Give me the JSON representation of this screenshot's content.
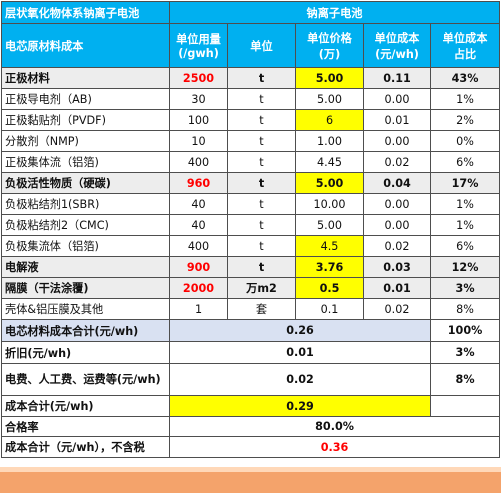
{
  "header": {
    "title_line1": "层状氧化物体系钠离子电池",
    "title_line2": "电芯原材料成本",
    "group_title": "钠离子电池",
    "col_usage_line1": "单位用量",
    "col_usage_line2": "(/gwh)",
    "col_unit": "单位",
    "col_price_line1": "单位价格",
    "col_price_line2": "(万)",
    "col_cost_line1": "单位成本",
    "col_cost_line2": "(元/wh)",
    "col_share_line1": "单位成本",
    "col_share_line2": "占比"
  },
  "rows": [
    {
      "name": "正极材料",
      "usage": "2500",
      "unit": "t",
      "price": "5.00",
      "cost": "0.11",
      "share": "43%",
      "category": true
    },
    {
      "name": "正极导电剂（AB)",
      "usage": "30",
      "unit": "t",
      "price": "5.00",
      "cost": "0.00",
      "share": "1%",
      "category": false
    },
    {
      "name": "正极黏贴剂（PVDF)",
      "usage": "100",
      "unit": "t",
      "price": "6",
      "cost": "0.01",
      "share": "2%",
      "category": false,
      "highlight": true
    },
    {
      "name": "分散剂（NMP)",
      "usage": "10",
      "unit": "t",
      "price": "1.00",
      "cost": "0.00",
      "share": "0%",
      "category": false
    },
    {
      "name": "正极集体流（铝箔)",
      "usage": "400",
      "unit": "t",
      "price": "4.45",
      "cost": "0.02",
      "share": "6%",
      "category": false
    },
    {
      "name": "负极活性物质（硬碳)",
      "usage": "960",
      "unit": "t",
      "price": "5.00",
      "cost": "0.04",
      "share": "17%",
      "category": true
    },
    {
      "name": "负极粘结剂1(SBR)",
      "usage": "40",
      "unit": "t",
      "price": "10.00",
      "cost": "0.00",
      "share": "1%",
      "category": false
    },
    {
      "name": "负极粘结剂2（CMC)",
      "usage": "40",
      "unit": "t",
      "price": "5.00",
      "cost": "0.00",
      "share": "1%",
      "category": false
    },
    {
      "name": "负极集流体（铝箔)",
      "usage": "400",
      "unit": "t",
      "price": "4.5",
      "cost": "0.02",
      "share": "6%",
      "category": false,
      "highlight": true
    },
    {
      "name": "电解液",
      "usage": "900",
      "unit": "t",
      "price": "3.76",
      "cost": "0.03",
      "share": "12%",
      "category": true
    },
    {
      "name": "隔膜（干法涂覆)",
      "usage": "2000",
      "unit": "万m2",
      "price": "0.5",
      "cost": "0.01",
      "share": "3%",
      "category": true
    },
    {
      "name": "壳体&铝压膜及其他",
      "usage": "1",
      "unit": "套",
      "price": "0.1",
      "cost": "0.02",
      "share": "8%",
      "category": false
    }
  ],
  "summary": {
    "material_total_label": "电芯材料成本合计(元/wh)",
    "material_total_value": "0.26",
    "material_total_share": "100%",
    "depreciation_label": "折旧(元/wh)",
    "depreciation_value": "0.01",
    "depreciation_share": "3%",
    "labor_label": "电费、人工费、运费等(元/wh)",
    "labor_value": "0.02",
    "labor_share": "8%",
    "cost_total_label": "成本合计(元/wh)",
    "cost_total_value": "0.29",
    "yield_label": "合格率",
    "yield_value": "80.0%",
    "cost_total_notax_label": "成本合计（元/wh），不含税",
    "cost_total_notax_value": "0.36"
  },
  "colors": {
    "header_bg": "#00b0f0",
    "highlight_yellow": "#ffff00",
    "category_grey": "#ededed",
    "summary_blue": "#d9e1f2",
    "red_text": "#ff0000",
    "bottom_bar": "#f4a36b"
  }
}
